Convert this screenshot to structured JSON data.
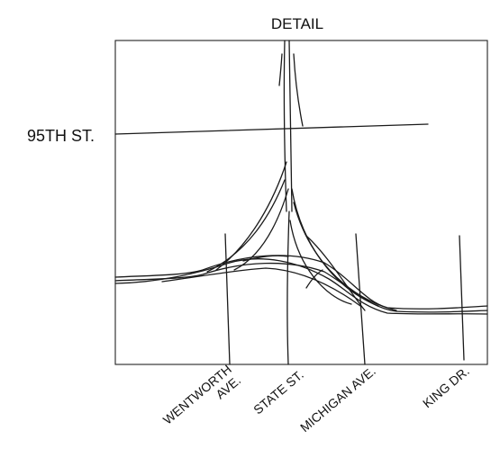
{
  "map": {
    "title": "DETAIL",
    "street_labels": {
      "ninety_fifth": "95TH ST.",
      "wentworth_line1": "WENTWORTH",
      "wentworth_line2": "AVE.",
      "state": "STATE ST.",
      "michigan": "MICHIGAN AVE.",
      "king": "KING DR."
    },
    "colors": {
      "ink": "#1a1a1a",
      "background": "#ffffff"
    }
  }
}
